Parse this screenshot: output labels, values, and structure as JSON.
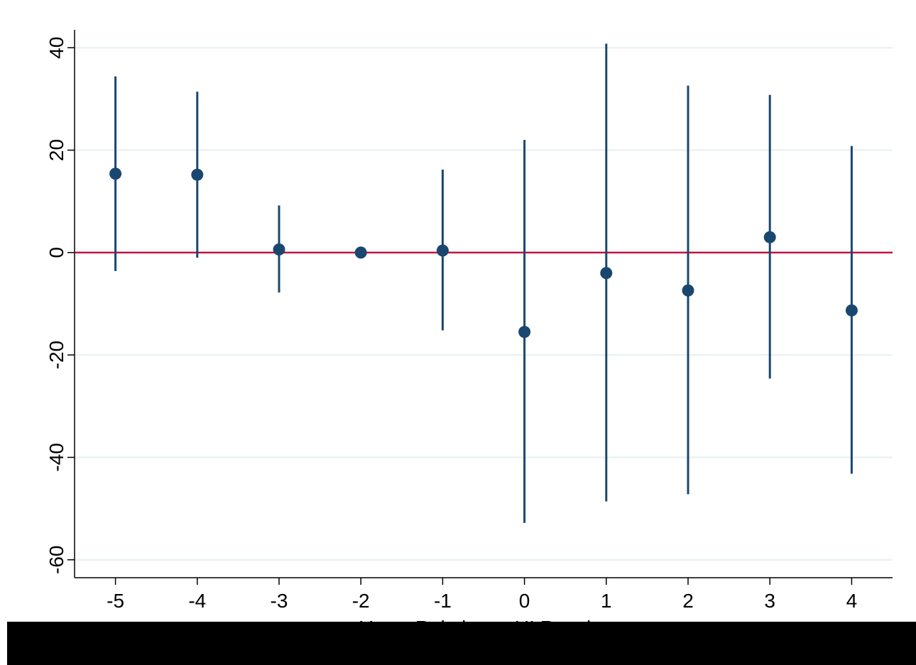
{
  "chart_data": {
    "type": "scatter",
    "subtype": "coefficient plot with confidence intervals",
    "title": "",
    "xlabel": "Years Relative to UI Receipt",
    "ylabel": "",
    "x": [
      -5,
      -4,
      -3,
      -2,
      -1,
      0,
      1,
      2,
      3,
      4
    ],
    "y": [
      15.4,
      15.2,
      0.6,
      0.0,
      0.4,
      -15.5,
      -4.0,
      -7.4,
      3.0,
      -11.3
    ],
    "ci_low": [
      -3.6,
      -1.0,
      -7.8,
      0.0,
      -15.2,
      -52.8,
      -48.6,
      -47.2,
      -24.6,
      -43.2
    ],
    "ci_high": [
      34.4,
      31.4,
      9.2,
      0.0,
      16.2,
      22.0,
      40.8,
      32.6,
      30.8,
      20.8
    ],
    "xticks": [
      "-5",
      "-4",
      "-3",
      "-2",
      "-1",
      "0",
      "1",
      "2",
      "3",
      "4"
    ],
    "yticks": [
      "-60",
      "-40",
      "-20",
      "0",
      "20",
      "40"
    ],
    "xlim": [
      -5.5,
      4.5
    ],
    "ylim": [
      -63.5,
      43.5
    ],
    "grid": "horizontal",
    "reference_line": {
      "y": 0,
      "color": "#c0143c"
    },
    "colors": {
      "marker": "#1a476f",
      "grid": "#eaf2f3",
      "reference": "#c0143c",
      "axis": "#000000"
    },
    "legend": "none"
  }
}
